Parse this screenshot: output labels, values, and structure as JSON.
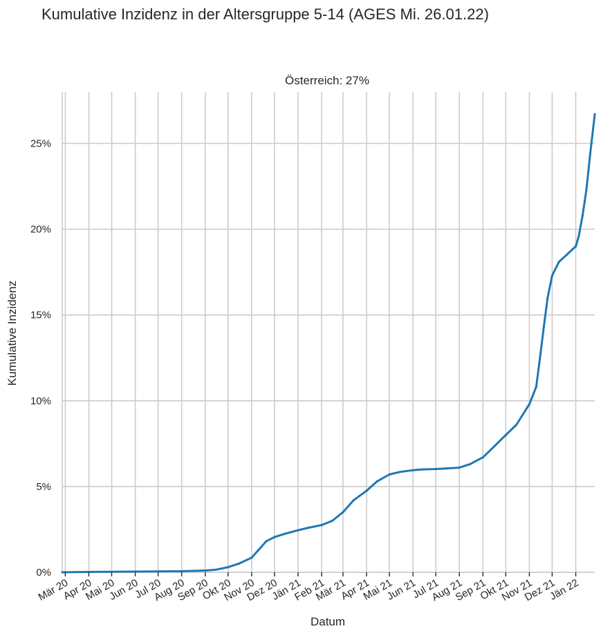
{
  "chart_data": {
    "type": "line",
    "title": "Kumulative Inzidenz in der Altersgruppe 5-14 (AGES Mi. 26.01.22)",
    "subtitle": "Österreich: 27%",
    "xlabel": "Datum",
    "ylabel": "Kumulative Inzidenz",
    "ylim": [
      0,
      28
    ],
    "yticks": [
      0,
      5,
      10,
      15,
      20,
      25
    ],
    "ytick_labels": [
      "0%",
      "5%",
      "10%",
      "15%",
      "20%",
      "25%"
    ],
    "xlim": [
      "2020-02-26",
      "2022-01-26"
    ],
    "xticks": [
      "2020-03-01",
      "2020-04-01",
      "2020-05-01",
      "2020-06-01",
      "2020-07-01",
      "2020-08-01",
      "2020-09-01",
      "2020-10-01",
      "2020-11-01",
      "2020-12-01",
      "2021-01-01",
      "2021-02-01",
      "2021-03-01",
      "2021-04-01",
      "2021-05-01",
      "2021-06-01",
      "2021-07-01",
      "2021-08-01",
      "2021-09-01",
      "2021-10-01",
      "2021-11-01",
      "2021-12-01",
      "2022-01-01"
    ],
    "xtick_labels": [
      "Mär 20",
      "Apr 20",
      "Mai 20",
      "Jun 20",
      "Jul 20",
      "Aug 20",
      "Sep 20",
      "Okt 20",
      "Nov 20",
      "Dez 20",
      "Jän 21",
      "Feb 21",
      "Mär 21",
      "Apr 21",
      "Mai 21",
      "Jun 21",
      "Jul 21",
      "Aug 21",
      "Sep 21",
      "Okt 21",
      "Nov 21",
      "Dez 21",
      "Jän 22"
    ],
    "grid": true,
    "series": [
      {
        "name": "Österreich",
        "color": "#1f77b4",
        "x": [
          "2020-02-26",
          "2020-04-01",
          "2020-06-01",
          "2020-08-01",
          "2020-09-01",
          "2020-09-15",
          "2020-10-01",
          "2020-10-15",
          "2020-11-01",
          "2020-11-10",
          "2020-11-20",
          "2020-12-01",
          "2020-12-15",
          "2021-01-01",
          "2021-01-15",
          "2021-02-01",
          "2021-02-15",
          "2021-03-01",
          "2021-03-15",
          "2021-04-01",
          "2021-04-15",
          "2021-05-01",
          "2021-05-15",
          "2021-06-01",
          "2021-06-15",
          "2021-07-01",
          "2021-07-15",
          "2021-08-01",
          "2021-08-15",
          "2021-09-01",
          "2021-09-15",
          "2021-10-01",
          "2021-10-15",
          "2021-11-01",
          "2021-11-10",
          "2021-11-15",
          "2021-11-20",
          "2021-11-25",
          "2021-12-01",
          "2021-12-10",
          "2021-12-20",
          "2022-01-01",
          "2022-01-05",
          "2022-01-10",
          "2022-01-15",
          "2022-01-20",
          "2022-01-26"
        ],
        "values": [
          0.0,
          0.02,
          0.04,
          0.06,
          0.1,
          0.15,
          0.3,
          0.5,
          0.85,
          1.3,
          1.8,
          2.05,
          2.25,
          2.45,
          2.6,
          2.75,
          3.0,
          3.5,
          4.2,
          4.75,
          5.3,
          5.7,
          5.85,
          5.95,
          6.0,
          6.02,
          6.05,
          6.1,
          6.3,
          6.7,
          7.3,
          8.0,
          8.6,
          9.8,
          10.8,
          12.5,
          14.3,
          16.0,
          17.3,
          18.1,
          18.5,
          19.0,
          19.6,
          20.8,
          22.3,
          24.4,
          26.7
        ]
      }
    ]
  }
}
